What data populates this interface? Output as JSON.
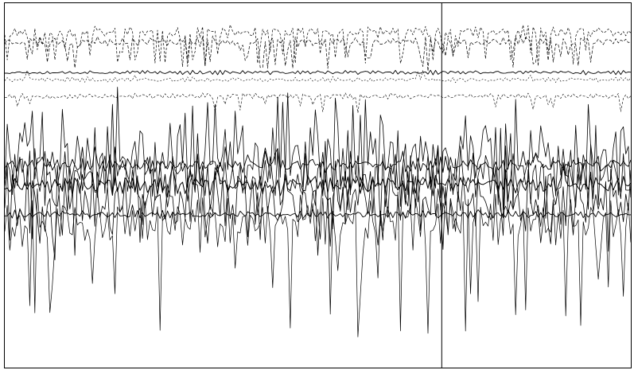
{
  "chart_data": {
    "type": "line",
    "x": {
      "start": 0,
      "end": 1,
      "step": 0.004
    },
    "ylim": [
      0,
      1
    ],
    "grid": false,
    "legend": "none",
    "colors": {
      "trace": "#000000",
      "frame": "#000000",
      "background": "#ffffff"
    },
    "annotations": [
      {
        "type": "vline",
        "x": 0.698
      }
    ],
    "series": [
      {
        "id": "t1",
        "baseline": 0.92,
        "amp": 0.025,
        "spike_rate": 0.18,
        "spike_amp": 0.09,
        "spike_dir": -1,
        "seed": 11,
        "dash": "3,2",
        "width": 0.7
      },
      {
        "id": "t2",
        "baseline": 0.895,
        "amp": 0.02,
        "spike_rate": 0.12,
        "spike_amp": 0.07,
        "spike_dir": -1,
        "seed": 23,
        "dash": "4,2",
        "width": 0.7
      },
      {
        "id": "t3",
        "baseline": 0.81,
        "amp": 0.008,
        "spike_rate": 0.0,
        "spike_amp": 0.0,
        "spike_dir": 1,
        "seed": 37,
        "dash": "",
        "width": 0.9
      },
      {
        "id": "t4",
        "baseline": 0.79,
        "amp": 0.01,
        "spike_rate": 0.03,
        "spike_amp": 0.03,
        "spike_dir": 1,
        "seed": 41,
        "dash": "2,2",
        "width": 0.6
      },
      {
        "id": "t5",
        "baseline": 0.745,
        "amp": 0.012,
        "spike_rate": 0.06,
        "spike_amp": 0.05,
        "spike_dir": -1,
        "seed": 53,
        "dash": "3,2",
        "width": 0.6
      },
      {
        "id": "t6",
        "baseline": 0.56,
        "amp": 0.16,
        "spike_rate": 0.25,
        "spike_amp": 0.13,
        "spike_dir": 1,
        "seed": 67,
        "dash": "",
        "width": 0.8
      },
      {
        "id": "t7",
        "baseline": 0.555,
        "amp": 0.03,
        "spike_rate": 0.05,
        "spike_amp": 0.05,
        "spike_dir": 1,
        "seed": 71,
        "dash": "",
        "width": 0.9
      },
      {
        "id": "t8",
        "baseline": 0.53,
        "amp": 0.12,
        "spike_rate": 0.2,
        "spike_amp": 0.1,
        "spike_dir": -1,
        "seed": 83,
        "dash": "",
        "width": 0.8
      },
      {
        "id": "t9",
        "baseline": 0.5,
        "amp": 0.04,
        "spike_rate": 0.04,
        "spike_amp": 0.05,
        "spike_dir": 1,
        "seed": 97,
        "dash": "",
        "width": 1.0
      },
      {
        "id": "t10",
        "baseline": 0.47,
        "amp": 0.13,
        "spike_rate": 0.22,
        "spike_amp": 0.12,
        "spike_dir": -1,
        "seed": 101,
        "dash": "",
        "width": 0.8
      },
      {
        "id": "t11",
        "baseline": 0.42,
        "amp": 0.015,
        "spike_rate": 0.02,
        "spike_amp": 0.03,
        "spike_dir": 1,
        "seed": 113,
        "dash": "",
        "width": 0.9
      },
      {
        "id": "t12",
        "baseline": 0.4,
        "amp": 0.11,
        "spike_rate": 0.09,
        "spike_amp": 0.3,
        "spike_dir": -1,
        "seed": 127,
        "dash": "",
        "width": 0.7
      }
    ]
  }
}
